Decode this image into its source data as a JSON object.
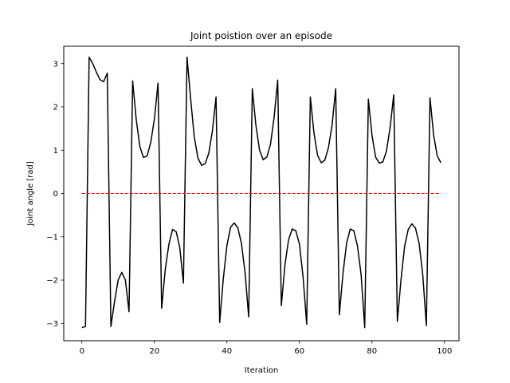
{
  "chart_data": {
    "type": "line",
    "title": "Joint poistion over an episode",
    "xlabel": "Iteration",
    "ylabel": "Joint angle [rad]",
    "xlim": [
      -5,
      104
    ],
    "ylim": [
      -3.4,
      3.4
    ],
    "x_ticks": [
      0,
      20,
      40,
      60,
      80,
      100
    ],
    "y_ticks": [
      -3,
      -2,
      -1,
      0,
      1,
      2,
      3
    ],
    "y_tick_labels": [
      "−3",
      "−2",
      "−1",
      "0",
      "1",
      "2",
      "3"
    ],
    "grid": false,
    "series": [
      {
        "color": "#000000",
        "style": "solid",
        "x": [
          0,
          1,
          2,
          3,
          4,
          5,
          6,
          7,
          8,
          9,
          10,
          11,
          12,
          13,
          14,
          15,
          16,
          17,
          18,
          19,
          20,
          21,
          22,
          23,
          24,
          25,
          26,
          27,
          28,
          29,
          30,
          31,
          32,
          33,
          34,
          35,
          36,
          37,
          38,
          39,
          40,
          41,
          42,
          43,
          44,
          45,
          46,
          47,
          48,
          49,
          50,
          51,
          52,
          53,
          54,
          55,
          56,
          57,
          58,
          59,
          60,
          61,
          62,
          63,
          64,
          65,
          66,
          67,
          68,
          69,
          70,
          71,
          72,
          73,
          74,
          75,
          76,
          77,
          78,
          79,
          80,
          81,
          82,
          83,
          84,
          85,
          86,
          87,
          88,
          89,
          90,
          91,
          92,
          93,
          94,
          95,
          96,
          97,
          98,
          99
        ],
        "y": [
          -3.1,
          -3.07,
          3.15,
          3.0,
          2.8,
          2.63,
          2.58,
          2.78,
          -3.07,
          -2.5,
          -2.0,
          -1.82,
          -2.0,
          -2.73,
          2.6,
          1.7,
          1.08,
          0.83,
          0.87,
          1.18,
          1.72,
          2.55,
          -2.65,
          -1.75,
          -1.17,
          -0.83,
          -0.88,
          -1.25,
          -2.07,
          3.15,
          2.18,
          1.3,
          0.82,
          0.65,
          0.69,
          0.93,
          1.45,
          2.23,
          -2.98,
          -1.97,
          -1.2,
          -0.78,
          -0.68,
          -0.79,
          -1.15,
          -1.83,
          -2.85,
          2.42,
          1.57,
          1.0,
          0.78,
          0.84,
          1.13,
          1.75,
          2.62,
          -2.59,
          -1.65,
          -1.07,
          -0.82,
          -0.86,
          -1.17,
          -1.93,
          -3.02,
          2.23,
          1.4,
          0.88,
          0.71,
          0.77,
          1.06,
          1.58,
          2.42,
          -2.8,
          -1.85,
          -1.15,
          -0.82,
          -0.86,
          -1.21,
          -1.87,
          -3.1,
          2.18,
          1.35,
          0.84,
          0.7,
          0.73,
          0.98,
          1.52,
          2.28,
          -2.95,
          -2.0,
          -1.22,
          -0.83,
          -0.7,
          -0.8,
          -1.15,
          -1.87,
          -3.05,
          2.21,
          1.35,
          0.87,
          0.71
        ]
      },
      {
        "color": "#ff0000",
        "style": "dashed",
        "x": [
          0,
          99
        ],
        "y": [
          0,
          0
        ]
      }
    ]
  }
}
